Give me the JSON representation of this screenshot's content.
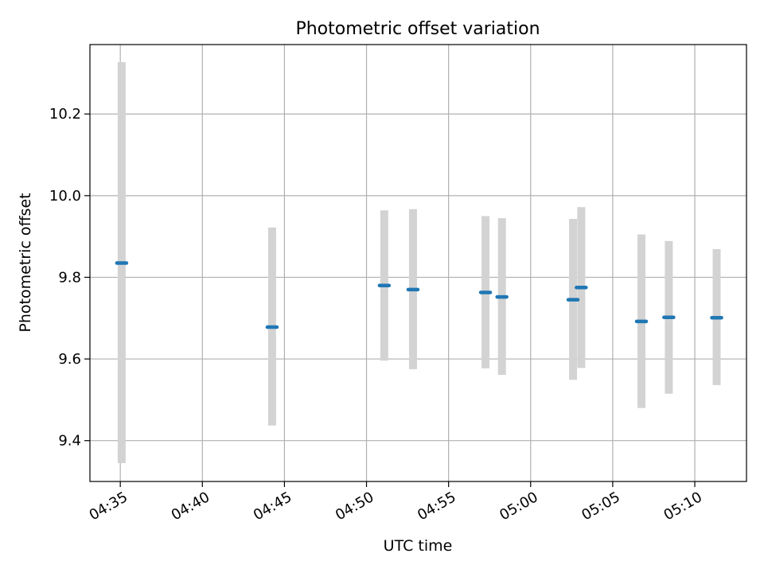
{
  "chart_data": {
    "type": "scatter",
    "title": "Photometric offset variation",
    "xlabel": "UTC time",
    "ylabel": "Photometric offset",
    "x_ticks": [
      "04:35",
      "04:40",
      "04:45",
      "04:50",
      "04:55",
      "05:00",
      "05:05",
      "05:10"
    ],
    "y_ticks": [
      "9.4",
      "9.6",
      "9.8",
      "10.0",
      "10.2"
    ],
    "xlim": [
      "04:33:09",
      "05:13:09"
    ],
    "ylim": [
      9.3,
      10.37
    ],
    "grid": true,
    "series": [
      {
        "x": [
          "04:35:05",
          "04:44:15",
          "04:51:05",
          "04:52:50",
          "04:57:15",
          "04:58:15",
          "05:02:35",
          "05:03:05",
          "05:06:45",
          "05:08:25",
          "05:11:20"
        ],
        "y": [
          9.835,
          9.678,
          9.78,
          9.77,
          9.763,
          9.752,
          9.745,
          9.775,
          9.692,
          9.702,
          9.701
        ],
        "err_low": [
          9.345,
          9.437,
          9.596,
          9.575,
          9.577,
          9.561,
          9.549,
          9.578,
          9.48,
          9.515,
          9.536
        ],
        "err_high": [
          10.327,
          9.922,
          9.964,
          9.967,
          9.95,
          9.945,
          9.943,
          9.972,
          9.905,
          9.889,
          9.869
        ],
        "color": "#1f77b4",
        "err_color": "#d3d3d3"
      }
    ]
  }
}
